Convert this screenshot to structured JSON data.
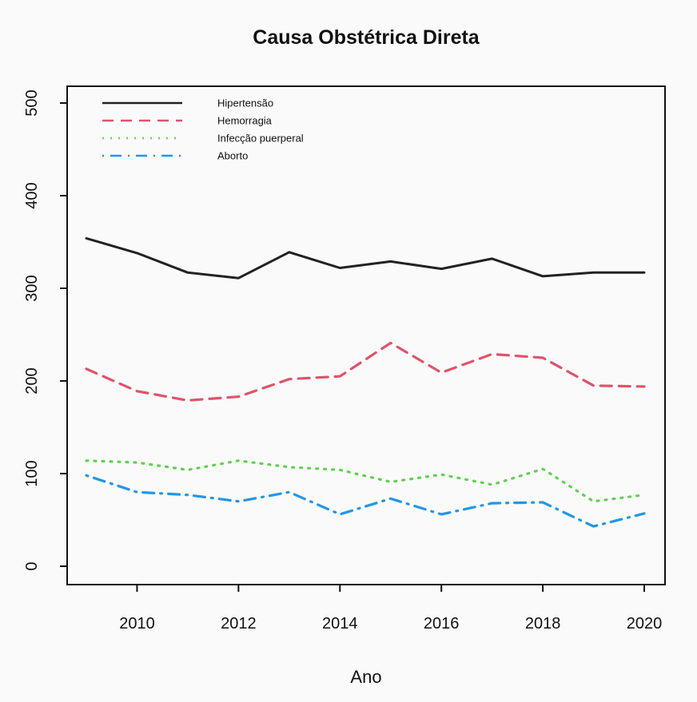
{
  "chart_data": {
    "type": "line",
    "title": "Causa Obstétrica Direta",
    "xlabel": "Ano",
    "ylabel": "",
    "xlim": [
      2008.9,
      2020.4
    ],
    "ylim": [
      0,
      500
    ],
    "xticks": [
      2010,
      2012,
      2014,
      2016,
      2018,
      2020
    ],
    "yticks": [
      0,
      100,
      200,
      300,
      400,
      500
    ],
    "x": [
      2009,
      2010,
      2011,
      2012,
      2013,
      2014,
      2015,
      2016,
      2017,
      2018,
      2019,
      2020
    ],
    "grid": false,
    "legend_position": "top-left",
    "series": [
      {
        "name": "Hipertensão",
        "color": "#222222",
        "dash": "solid",
        "values": [
          354,
          338,
          317,
          311,
          339,
          322,
          329,
          321,
          332,
          313,
          317,
          317
        ]
      },
      {
        "name": "Hemorragia",
        "color": "#df536b",
        "dash": "dashed",
        "values": [
          213,
          189,
          179,
          183,
          202,
          205,
          241,
          209,
          229,
          225,
          195,
          194
        ]
      },
      {
        "name": "Infecção puerperal",
        "color": "#61d04f",
        "dash": "dotted",
        "values": [
          114,
          112,
          104,
          114,
          107,
          104,
          91,
          99,
          88,
          105,
          70,
          77
        ]
      },
      {
        "name": "Aborto",
        "color": "#2297e6",
        "dash": "dotdash",
        "values": [
          98,
          80,
          77,
          70,
          80,
          56,
          73,
          56,
          68,
          69,
          43,
          57
        ]
      }
    ]
  }
}
